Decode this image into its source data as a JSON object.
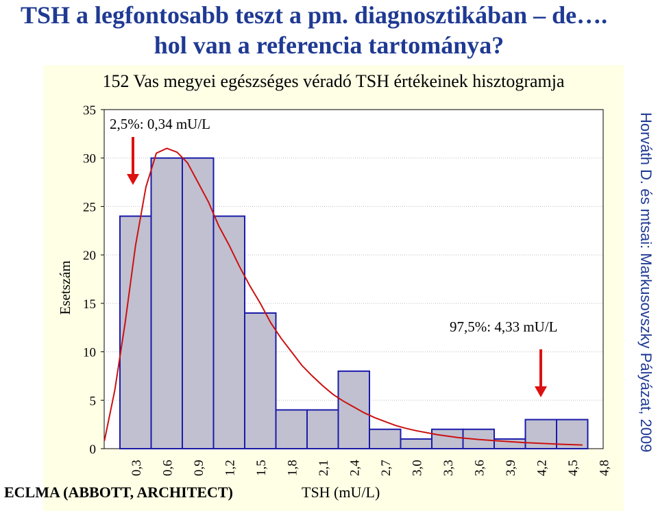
{
  "slide": {
    "title_line1": "TSH a legfontosabb teszt a pm. diagnosztikában – de….",
    "title_line2": "hol van a referencia tartománya?",
    "credit": "Horváth D. és mtsai: Markusovszky Pályázat, 2009",
    "footer": "ECLMA (ABBOTT, ARCHITECT)"
  },
  "chart_data": {
    "type": "bar",
    "title": "152 Vas megyei egészséges véradó TSH értékeinek hisztogramja",
    "xlabel": "TSH (mU/L)",
    "ylabel": "Esetszám",
    "categories": [
      "0,3",
      "0,6",
      "0,9",
      "1,2",
      "1,5",
      "1,8",
      "2,1",
      "2,4",
      "2,7",
      "3,0",
      "3,3",
      "3,6",
      "3,9",
      "4,2",
      "4,5",
      "4,8"
    ],
    "values": [
      24,
      30,
      30,
      24,
      14,
      4,
      4,
      8,
      2,
      1,
      2,
      2,
      1,
      3,
      3,
      0
    ],
    "ylim": [
      0,
      35
    ],
    "yticks": [
      "0",
      "5",
      "10",
      "15",
      "20",
      "25",
      "30",
      "35"
    ],
    "grid": true,
    "bar_color": "#c0c0d0",
    "bar_edge": "#1a1aaa",
    "curve_color": "#cc1010",
    "annotations": [
      {
        "text": "2,5%: 0,34 mU/L"
      },
      {
        "text": "97,5%: 4,33 mU/L"
      }
    ],
    "fit_curve": [
      [
        0.0,
        0.8
      ],
      [
        0.1,
        6
      ],
      [
        0.2,
        13
      ],
      [
        0.3,
        21
      ],
      [
        0.4,
        27
      ],
      [
        0.5,
        30.5
      ],
      [
        0.6,
        31
      ],
      [
        0.7,
        30.6
      ],
      [
        0.8,
        29.5
      ],
      [
        0.9,
        27.5
      ],
      [
        1.0,
        25.5
      ],
      [
        1.1,
        23
      ],
      [
        1.2,
        21
      ],
      [
        1.3,
        18.8
      ],
      [
        1.4,
        16.8
      ],
      [
        1.5,
        15
      ],
      [
        1.6,
        13
      ],
      [
        1.7,
        11.4
      ],
      [
        1.8,
        10
      ],
      [
        1.9,
        8.6
      ],
      [
        2.0,
        7.5
      ],
      [
        2.1,
        6.5
      ],
      [
        2.2,
        5.6
      ],
      [
        2.3,
        4.9
      ],
      [
        2.4,
        4.3
      ],
      [
        2.5,
        3.7
      ],
      [
        2.6,
        3.2
      ],
      [
        2.7,
        2.8
      ],
      [
        2.8,
        2.4
      ],
      [
        2.9,
        2.1
      ],
      [
        3.0,
        1.85
      ],
      [
        3.2,
        1.45
      ],
      [
        3.4,
        1.15
      ],
      [
        3.6,
        0.95
      ],
      [
        3.8,
        0.8
      ],
      [
        4.0,
        0.65
      ],
      [
        4.2,
        0.55
      ],
      [
        4.4,
        0.45
      ],
      [
        4.6,
        0.38
      ],
      [
        4.8,
        0.32
      ],
      [
        5.0,
        0.28
      ]
    ]
  }
}
